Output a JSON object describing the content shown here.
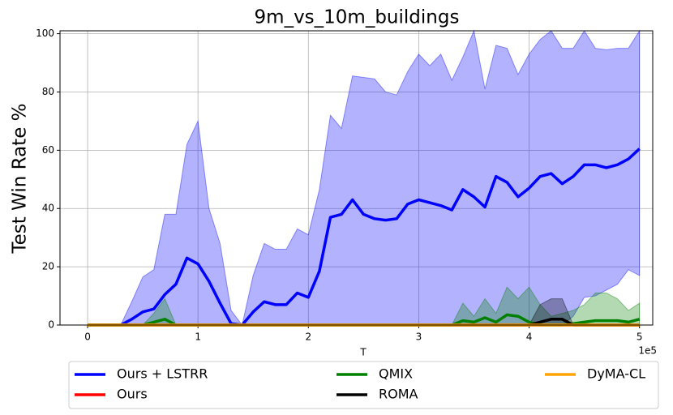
{
  "chart_data": {
    "type": "line",
    "title": "9m_vs_10m_buildings",
    "x_label": "T",
    "y_label": "Test Win Rate %",
    "x_offset_label": "1e5",
    "xlim": [
      -0.25,
      5.12
    ],
    "ylim": [
      0,
      101
    ],
    "xticks": [
      0,
      1,
      2,
      3,
      4,
      5
    ],
    "yticks": [
      0,
      20,
      40,
      60,
      80,
      100
    ],
    "grid": true,
    "legend": "lower center",
    "x": [
      0,
      0.1,
      0.2,
      0.3,
      0.4,
      0.5,
      0.6,
      0.7,
      0.8,
      0.9,
      1,
      1.1,
      1.2,
      1.3,
      1.4,
      1.5,
      1.6,
      1.7,
      1.8,
      1.9,
      2,
      2.1,
      2.2,
      2.3,
      2.4,
      2.5,
      2.6,
      2.7,
      2.8,
      2.9,
      3,
      3.1,
      3.2,
      3.3,
      3.4,
      3.5,
      3.6,
      3.7,
      3.8,
      3.9,
      4,
      4.1,
      4.2,
      4.3,
      4.4,
      4.5,
      4.6,
      4.7,
      4.8,
      4.9,
      5
    ],
    "series": [
      {
        "name": "Ours + LSTRR",
        "color": "#0000ff",
        "values": [
          0,
          0,
          0,
          0,
          2,
          4.5,
          5.5,
          10.5,
          14,
          23,
          21,
          15,
          7.5,
          0.5,
          0,
          4.5,
          8,
          7,
          7,
          11,
          9.5,
          18.5,
          37,
          38,
          43,
          38,
          36.5,
          36,
          36.5,
          41.5,
          43,
          42,
          41,
          39.5,
          46.5,
          44,
          40.5,
          51,
          49,
          44,
          47,
          51,
          52,
          48.5,
          51,
          55,
          55,
          54,
          55,
          57,
          60.5
        ],
        "upper": [
          0,
          0,
          0,
          0,
          8,
          16.5,
          19,
          38,
          38,
          62,
          70,
          40,
          28,
          5,
          0,
          17,
          28,
          26,
          26,
          33,
          31,
          46.5,
          72,
          67.5,
          85.5,
          85,
          84.5,
          80,
          79,
          87,
          93,
          89,
          93,
          84,
          92,
          101,
          81,
          96,
          95,
          86,
          93,
          98,
          101,
          95,
          95,
          101,
          95,
          94.5,
          95,
          95,
          101
        ],
        "lower": [
          0,
          0,
          0,
          0,
          0,
          0,
          0,
          0,
          0,
          0,
          0,
          0,
          0,
          0,
          0,
          0,
          0,
          0,
          0,
          0,
          0,
          0,
          0,
          0,
          0,
          0,
          0,
          0,
          0,
          0,
          0,
          0,
          0,
          0,
          0,
          0,
          0,
          0,
          0,
          0,
          0,
          0,
          0,
          0,
          3,
          9.5,
          10,
          12,
          14,
          19,
          17
        ]
      },
      {
        "name": "Ours",
        "color": "#ff0000",
        "values": [
          0,
          0,
          0,
          0,
          0,
          0,
          0,
          0,
          0,
          0,
          0,
          0,
          0,
          0,
          0,
          0,
          0,
          0,
          0,
          0,
          0,
          0,
          0,
          0,
          0,
          0,
          0,
          0,
          0,
          0,
          0,
          0,
          0,
          0,
          0,
          0,
          0,
          0,
          0,
          0,
          0,
          0,
          0,
          0,
          0,
          0,
          0,
          0,
          0,
          0,
          0
        ]
      },
      {
        "name": "QMIX",
        "color": "#008000",
        "values": [
          0,
          0,
          0,
          0,
          0,
          0,
          1,
          2,
          0,
          0,
          0,
          0,
          0,
          0,
          0,
          0,
          0,
          0,
          0,
          0,
          0,
          0,
          0,
          0,
          0,
          0,
          0,
          0,
          0,
          0,
          0,
          0,
          0,
          0,
          1.5,
          1,
          2.5,
          1,
          3.5,
          3,
          1,
          0,
          0,
          0,
          0.5,
          1,
          1.5,
          1.5,
          1.5,
          1,
          2
        ],
        "upper": [
          0,
          0,
          0,
          0,
          0,
          0,
          4,
          9,
          0,
          0,
          0,
          0,
          0,
          0,
          0,
          0,
          0,
          0,
          0,
          0,
          0,
          0,
          0,
          0,
          0,
          0,
          0,
          0,
          0,
          0,
          0,
          0,
          0,
          0,
          7.5,
          3,
          9,
          4,
          13,
          9,
          13,
          7,
          3,
          4,
          5,
          7,
          11,
          11,
          9,
          5,
          7.5
        ],
        "lower": [
          0,
          0,
          0,
          0,
          0,
          0,
          0,
          0,
          0,
          0,
          0,
          0,
          0,
          0,
          0,
          0,
          0,
          0,
          0,
          0,
          0,
          0,
          0,
          0,
          0,
          0,
          0,
          0,
          0,
          0,
          0,
          0,
          0,
          0,
          0,
          0,
          0,
          0,
          0,
          0,
          0,
          0,
          0,
          0,
          0,
          0,
          0,
          0,
          0,
          0,
          0
        ]
      },
      {
        "name": "ROMA",
        "color": "#000000",
        "values": [
          0,
          0,
          0,
          0,
          0,
          0,
          0,
          0,
          0,
          0,
          0,
          0,
          0,
          0,
          0,
          0,
          0,
          0,
          0,
          0,
          0,
          0,
          0,
          0,
          0,
          0,
          0,
          0,
          0,
          0,
          0,
          0,
          0,
          0,
          0,
          0,
          0,
          0,
          0,
          0,
          0,
          1,
          2,
          2,
          0,
          0,
          0,
          0,
          0,
          0,
          0
        ],
        "upper": [
          0,
          0,
          0,
          0,
          0,
          0,
          0,
          0,
          0,
          0,
          0,
          0,
          0,
          0,
          0,
          0,
          0,
          0,
          0,
          0,
          0,
          0,
          0,
          0,
          0,
          0,
          0,
          0,
          0,
          0,
          0,
          0,
          0,
          0,
          0,
          0,
          0,
          0,
          0,
          0,
          0,
          7,
          9,
          9,
          0,
          0,
          0,
          0,
          0,
          0,
          0
        ],
        "lower": [
          0,
          0,
          0,
          0,
          0,
          0,
          0,
          0,
          0,
          0,
          0,
          0,
          0,
          0,
          0,
          0,
          0,
          0,
          0,
          0,
          0,
          0,
          0,
          0,
          0,
          0,
          0,
          0,
          0,
          0,
          0,
          0,
          0,
          0,
          0,
          0,
          0,
          0,
          0,
          0,
          0,
          0,
          0,
          0,
          0,
          0,
          0,
          0,
          0,
          0,
          0
        ]
      },
      {
        "name": "DyMA-CL",
        "color": "#ffa500",
        "values": [
          0,
          0,
          0,
          0,
          0,
          0,
          0,
          0,
          0,
          0,
          0,
          0,
          0,
          0,
          0,
          0,
          0,
          0,
          0,
          0,
          0,
          0,
          0,
          0,
          0,
          0,
          0,
          0,
          0,
          0,
          0,
          0,
          0,
          0,
          0,
          0,
          0,
          0,
          0,
          0,
          0,
          0,
          0,
          0,
          0,
          0,
          0,
          0,
          0,
          0,
          0
        ]
      }
    ]
  }
}
